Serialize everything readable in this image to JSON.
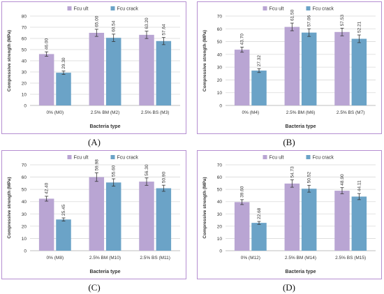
{
  "chart_data": [
    {
      "type": "bar",
      "panel_label": "(A)",
      "categories": [
        "0% (M0)",
        "2.5% BM (M2)",
        "2.5% BS (M3)"
      ],
      "series": [
        {
          "name": "Fcu ult",
          "values": [
            46.0,
            65.0,
            63.2
          ],
          "errors": [
            2.0,
            3.2,
            3.3
          ],
          "color": "#b9a5d3"
        },
        {
          "name": "Fcu crack",
          "values": [
            29.3,
            60.54,
            57.64
          ],
          "errors": [
            1.5,
            3.3,
            3.2
          ],
          "color": "#6ba3c7"
        }
      ],
      "value_labels": [
        [
          "46.00",
          "65.00",
          "63.20"
        ],
        [
          "29.30",
          "60.54",
          "57.64"
        ]
      ],
      "xlabel": "Bacteria type",
      "ylabel": "Compressive strength (MPa)",
      "ylim": [
        0,
        80
      ],
      "yticks": [
        0,
        10,
        20,
        30,
        40,
        50,
        60,
        70,
        80
      ],
      "grid": true,
      "legend_position": "top-center"
    },
    {
      "type": "bar",
      "panel_label": "(B)",
      "categories": [
        "0% (M4)",
        "2.5% BM (M6)",
        "2.5% BS (M7)"
      ],
      "series": [
        {
          "name": "Fcu ult",
          "values": [
            43.7,
            61.5,
            57.53
          ],
          "errors": [
            2.0,
            3.0,
            3.0
          ],
          "color": "#b9a5d3"
        },
        {
          "name": "Fcu crack",
          "values": [
            27.32,
            57.06,
            52.21
          ],
          "errors": [
            1.5,
            3.0,
            3.0
          ],
          "color": "#6ba3c7"
        }
      ],
      "value_labels": [
        [
          "43.70",
          "61.50",
          "57.53"
        ],
        [
          "27.32",
          "57.06",
          "52.21"
        ]
      ],
      "xlabel": "Bacteria type",
      "ylabel": "Compressive strength (MPa)",
      "ylim": [
        0,
        70
      ],
      "yticks": [
        0,
        10,
        20,
        30,
        40,
        50,
        60,
        70
      ],
      "grid": true,
      "legend_position": "top-center"
    },
    {
      "type": "bar",
      "panel_label": "(C)",
      "categories": [
        "0% (M8)",
        "2.5% BM (M10)",
        "2.5% BS (M11)"
      ],
      "series": [
        {
          "name": "Fcu ult",
          "values": [
            42.4,
            59.98,
            56.3
          ],
          "errors": [
            2.0,
            3.5,
            3.0
          ],
          "color": "#b9a5d3"
        },
        {
          "name": "Fcu crack",
          "values": [
            25.45,
            55.6,
            50.9
          ],
          "errors": [
            1.3,
            3.0,
            2.5
          ],
          "color": "#6ba3c7"
        }
      ],
      "value_labels": [
        [
          "42.40",
          "59.98",
          "56.30"
        ],
        [
          "25.45",
          "55.60",
          "50.90"
        ]
      ],
      "xlabel": "Bacteria type",
      "ylabel": "Compressive strength (MPa)",
      "ylim": [
        0,
        70
      ],
      "yticks": [
        0,
        10,
        20,
        30,
        40,
        50,
        60,
        70
      ],
      "grid": true,
      "legend_position": "top-center"
    },
    {
      "type": "bar",
      "panel_label": "(D)",
      "categories": [
        "0% (M12)",
        "2.5% BM (M14)",
        "2.5% BS (M15)"
      ],
      "series": [
        {
          "name": "Fcu ult",
          "values": [
            39.6,
            54.73,
            48.9
          ],
          "errors": [
            2.0,
            3.0,
            2.5
          ],
          "color": "#b9a5d3"
        },
        {
          "name": "Fcu crack",
          "values": [
            22.68,
            50.52,
            44.11
          ],
          "errors": [
            1.2,
            2.8,
            2.5
          ],
          "color": "#6ba3c7"
        }
      ],
      "value_labels": [
        [
          "39.60",
          "54.73",
          "48.90"
        ],
        [
          "22.68",
          "50.52",
          "44.11"
        ]
      ],
      "xlabel": "Bacteria type",
      "ylabel": "Compressive strength (MPa)",
      "ylim": [
        0,
        70
      ],
      "yticks": [
        0,
        10,
        20,
        30,
        40,
        50,
        60,
        70
      ],
      "grid": true,
      "legend_position": "top-center"
    }
  ]
}
